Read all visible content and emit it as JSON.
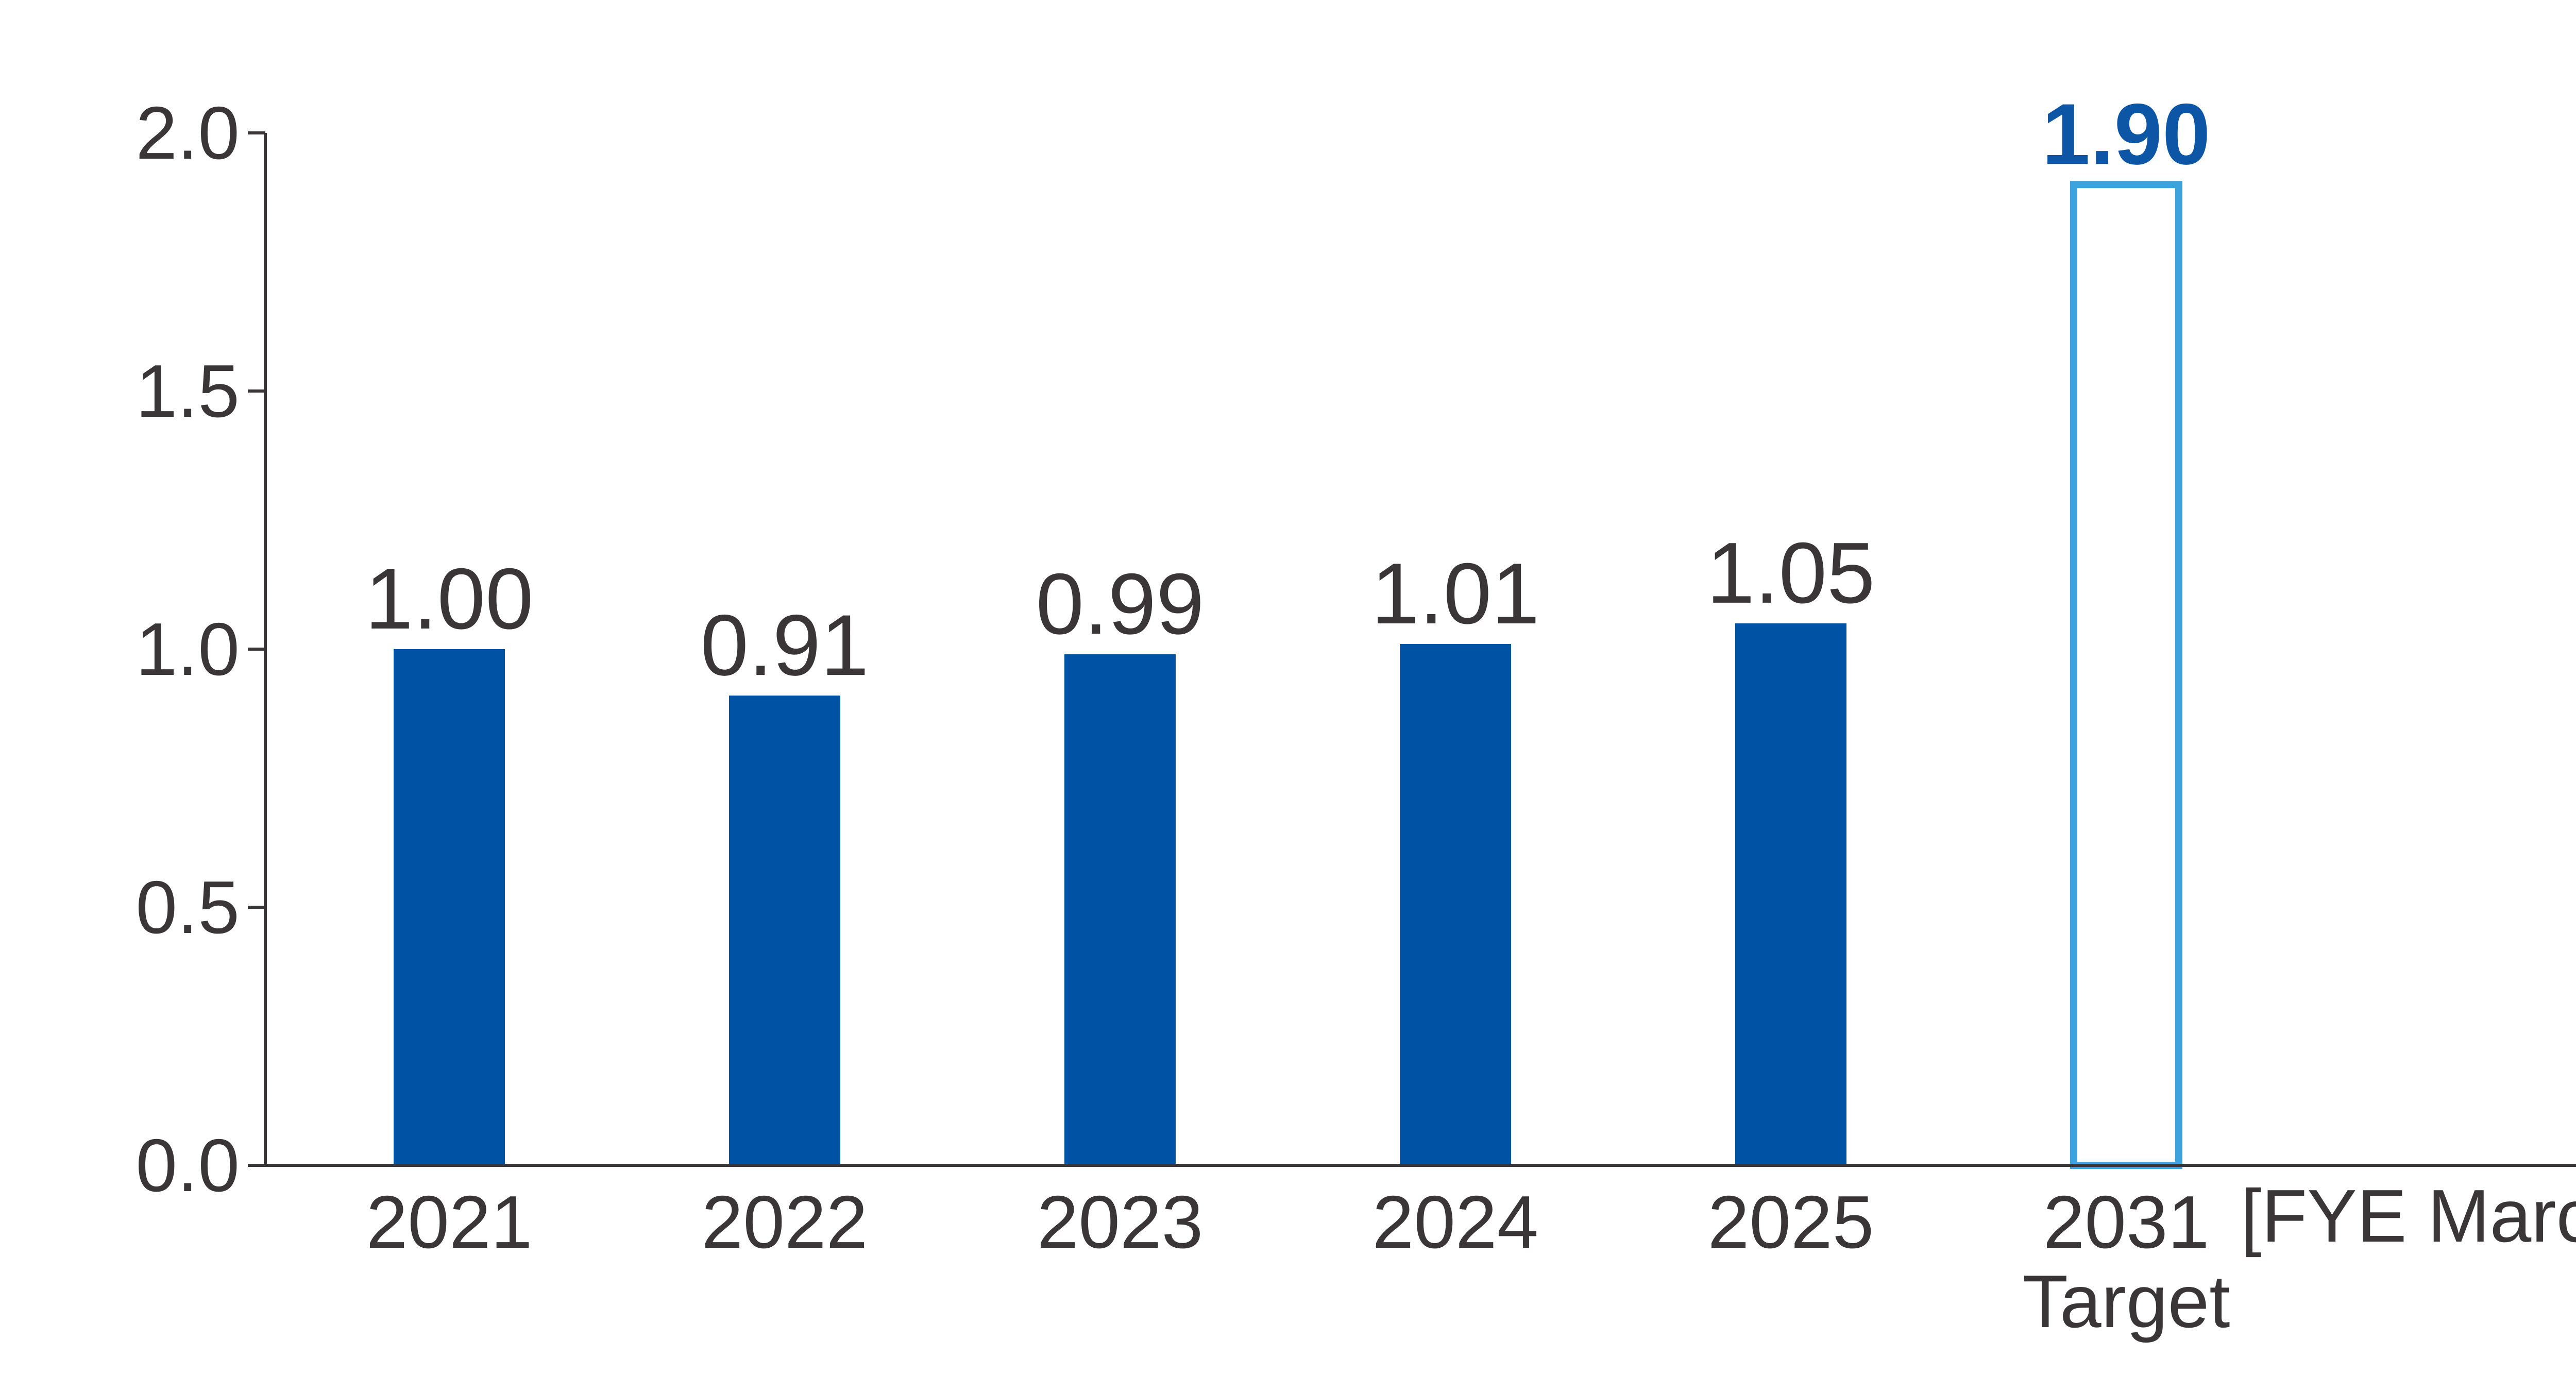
{
  "chart_data": {
    "type": "bar",
    "categories": [
      "2021",
      "2022",
      "2023",
      "2024",
      "2025",
      "2031"
    ],
    "category_sublabels": [
      "",
      "",
      "",
      "",
      "",
      "Target"
    ],
    "values": [
      1.0,
      0.91,
      0.99,
      1.01,
      1.05,
      1.9
    ],
    "value_labels": [
      "1.00",
      "0.91",
      "0.99",
      "1.01",
      "1.05",
      "1.90"
    ],
    "target_flags": [
      false,
      false,
      false,
      false,
      false,
      true
    ],
    "title": "",
    "xlabel": "",
    "ylabel": "",
    "x_unit_label": "[FYE March]",
    "ylim": [
      0.0,
      2.0
    ],
    "yticks": [
      0.0,
      0.5,
      1.0,
      1.5,
      2.0
    ],
    "ytick_labels": [
      "0.0",
      "0.5",
      "1.0",
      "1.5",
      "2.0"
    ],
    "grid": false,
    "legend": "none",
    "colors": {
      "bar_fill": "#0052a4",
      "target_outline": "#3ca3dc",
      "target_label": "#0d55a5",
      "text": "#3a3536",
      "axis": "#3a3536"
    }
  }
}
